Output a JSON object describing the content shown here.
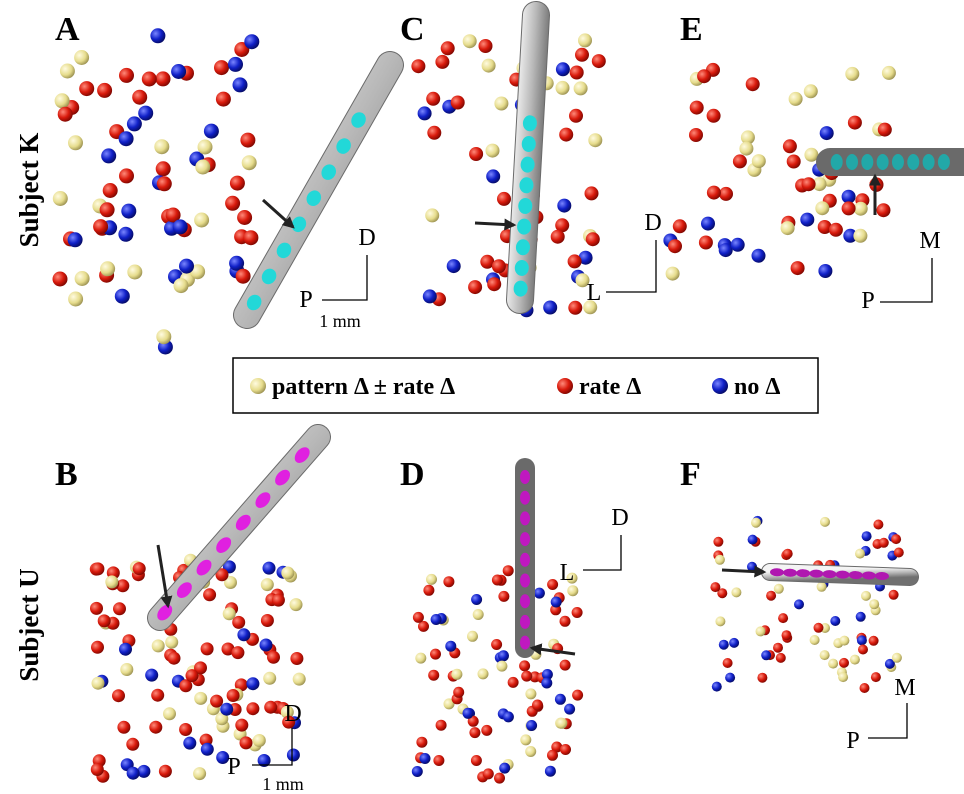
{
  "rows": [
    "Subject K",
    "Subject U"
  ],
  "panels": [
    {
      "label": "A",
      "up": "D",
      "side": "P",
      "scale": "1 mm"
    },
    {
      "label": "C",
      "up": "D",
      "side": "L"
    },
    {
      "label": "E",
      "up": "M",
      "side": "P"
    },
    {
      "label": "B",
      "up": "D",
      "side": "P",
      "scale": "1 mm"
    },
    {
      "label": "D",
      "up": "D",
      "side": "L"
    },
    {
      "label": "F",
      "up": "M",
      "side": "P"
    }
  ],
  "legend": [
    "pattern Δ ± rate Δ",
    "rate Δ",
    "no Δ"
  ]
}
